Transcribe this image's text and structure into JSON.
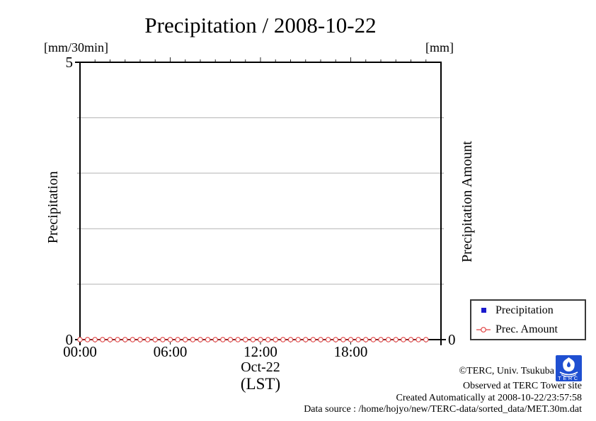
{
  "title": "Precipitation / 2008-10-22",
  "axes": {
    "left_unit": "[mm/30min]",
    "right_unit": "[mm]",
    "left_label": "Precipitation",
    "right_label": "Precipitation Amount",
    "left_max": "5",
    "left_min": "0",
    "right_min": "0",
    "x_date": "Oct-22",
    "x_tz": "(LST)"
  },
  "legend": {
    "items": [
      {
        "label": "Precipitation",
        "marker": "filled-square",
        "color": "#1a1ace"
      },
      {
        "label": "Prec. Amount",
        "marker": "open-circle-on-line",
        "color": "#e04545"
      }
    ]
  },
  "footer": {
    "line1": "©TERC, Univ. Tsukuba",
    "line2": "Observed at TERC Tower site",
    "line3": "Created Automatically at 2008-10-22/23:57:58",
    "line4": "Data source : /home/hojyo/new/TERC-data/sorted_data/MET.30m.dat",
    "logo_text": "TERC",
    "logo_color": "#1f4fd1"
  },
  "chart_data": {
    "type": "line",
    "title": "Precipitation / 2008-10-22",
    "xlabel": "Oct-22 (LST)",
    "grid": true,
    "legend_position": "outside-bottom-right",
    "x_axis": {
      "range_hours": [
        0,
        24
      ],
      "tick_hours": [
        0,
        6,
        12,
        18
      ],
      "tick_labels": [
        "00:00",
        "06:00",
        "12:00",
        "18:00"
      ],
      "minor_tick_interval_hours": 1,
      "date": "Oct-22",
      "timezone": "LST"
    },
    "y_axis_left": {
      "label": "Precipitation",
      "unit": "mm/30min",
      "min": 0,
      "max": 5,
      "labeled_ticks": [
        0,
        5
      ],
      "gridline_values": [
        1,
        2,
        3,
        4
      ]
    },
    "y_axis_right": {
      "label": "Precipitation Amount",
      "unit": "mm",
      "labeled_ticks": [
        0
      ]
    },
    "x_hours": [
      0,
      0.5,
      1,
      1.5,
      2,
      2.5,
      3,
      3.5,
      4,
      4.5,
      5,
      5.5,
      6,
      6.5,
      7,
      7.5,
      8,
      8.5,
      9,
      9.5,
      10,
      10.5,
      11,
      11.5,
      12,
      12.5,
      13,
      13.5,
      14,
      14.5,
      15,
      15.5,
      16,
      16.5,
      17,
      17.5,
      18,
      18.5,
      19,
      19.5,
      20,
      20.5,
      21,
      21.5,
      22,
      22.5,
      23
    ],
    "series": [
      {
        "name": "Precipitation",
        "marker": "filled-square",
        "color": "#1a1ace",
        "visible_points": false,
        "values": [
          0,
          0,
          0,
          0,
          0,
          0,
          0,
          0,
          0,
          0,
          0,
          0,
          0,
          0,
          0,
          0,
          0,
          0,
          0,
          0,
          0,
          0,
          0,
          0,
          0,
          0,
          0,
          0,
          0,
          0,
          0,
          0,
          0,
          0,
          0,
          0,
          0,
          0,
          0,
          0,
          0,
          0,
          0,
          0,
          0,
          0,
          0
        ]
      },
      {
        "name": "Prec. Amount",
        "marker": "open-circle",
        "color": "#e04545",
        "visible_points": true,
        "values": [
          0,
          0,
          0,
          0,
          0,
          0,
          0,
          0,
          0,
          0,
          0,
          0,
          0,
          0,
          0,
          0,
          0,
          0,
          0,
          0,
          0,
          0,
          0,
          0,
          0,
          0,
          0,
          0,
          0,
          0,
          0,
          0,
          0,
          0,
          0,
          0,
          0,
          0,
          0,
          0,
          0,
          0,
          0,
          0,
          0,
          0,
          0
        ]
      }
    ]
  }
}
